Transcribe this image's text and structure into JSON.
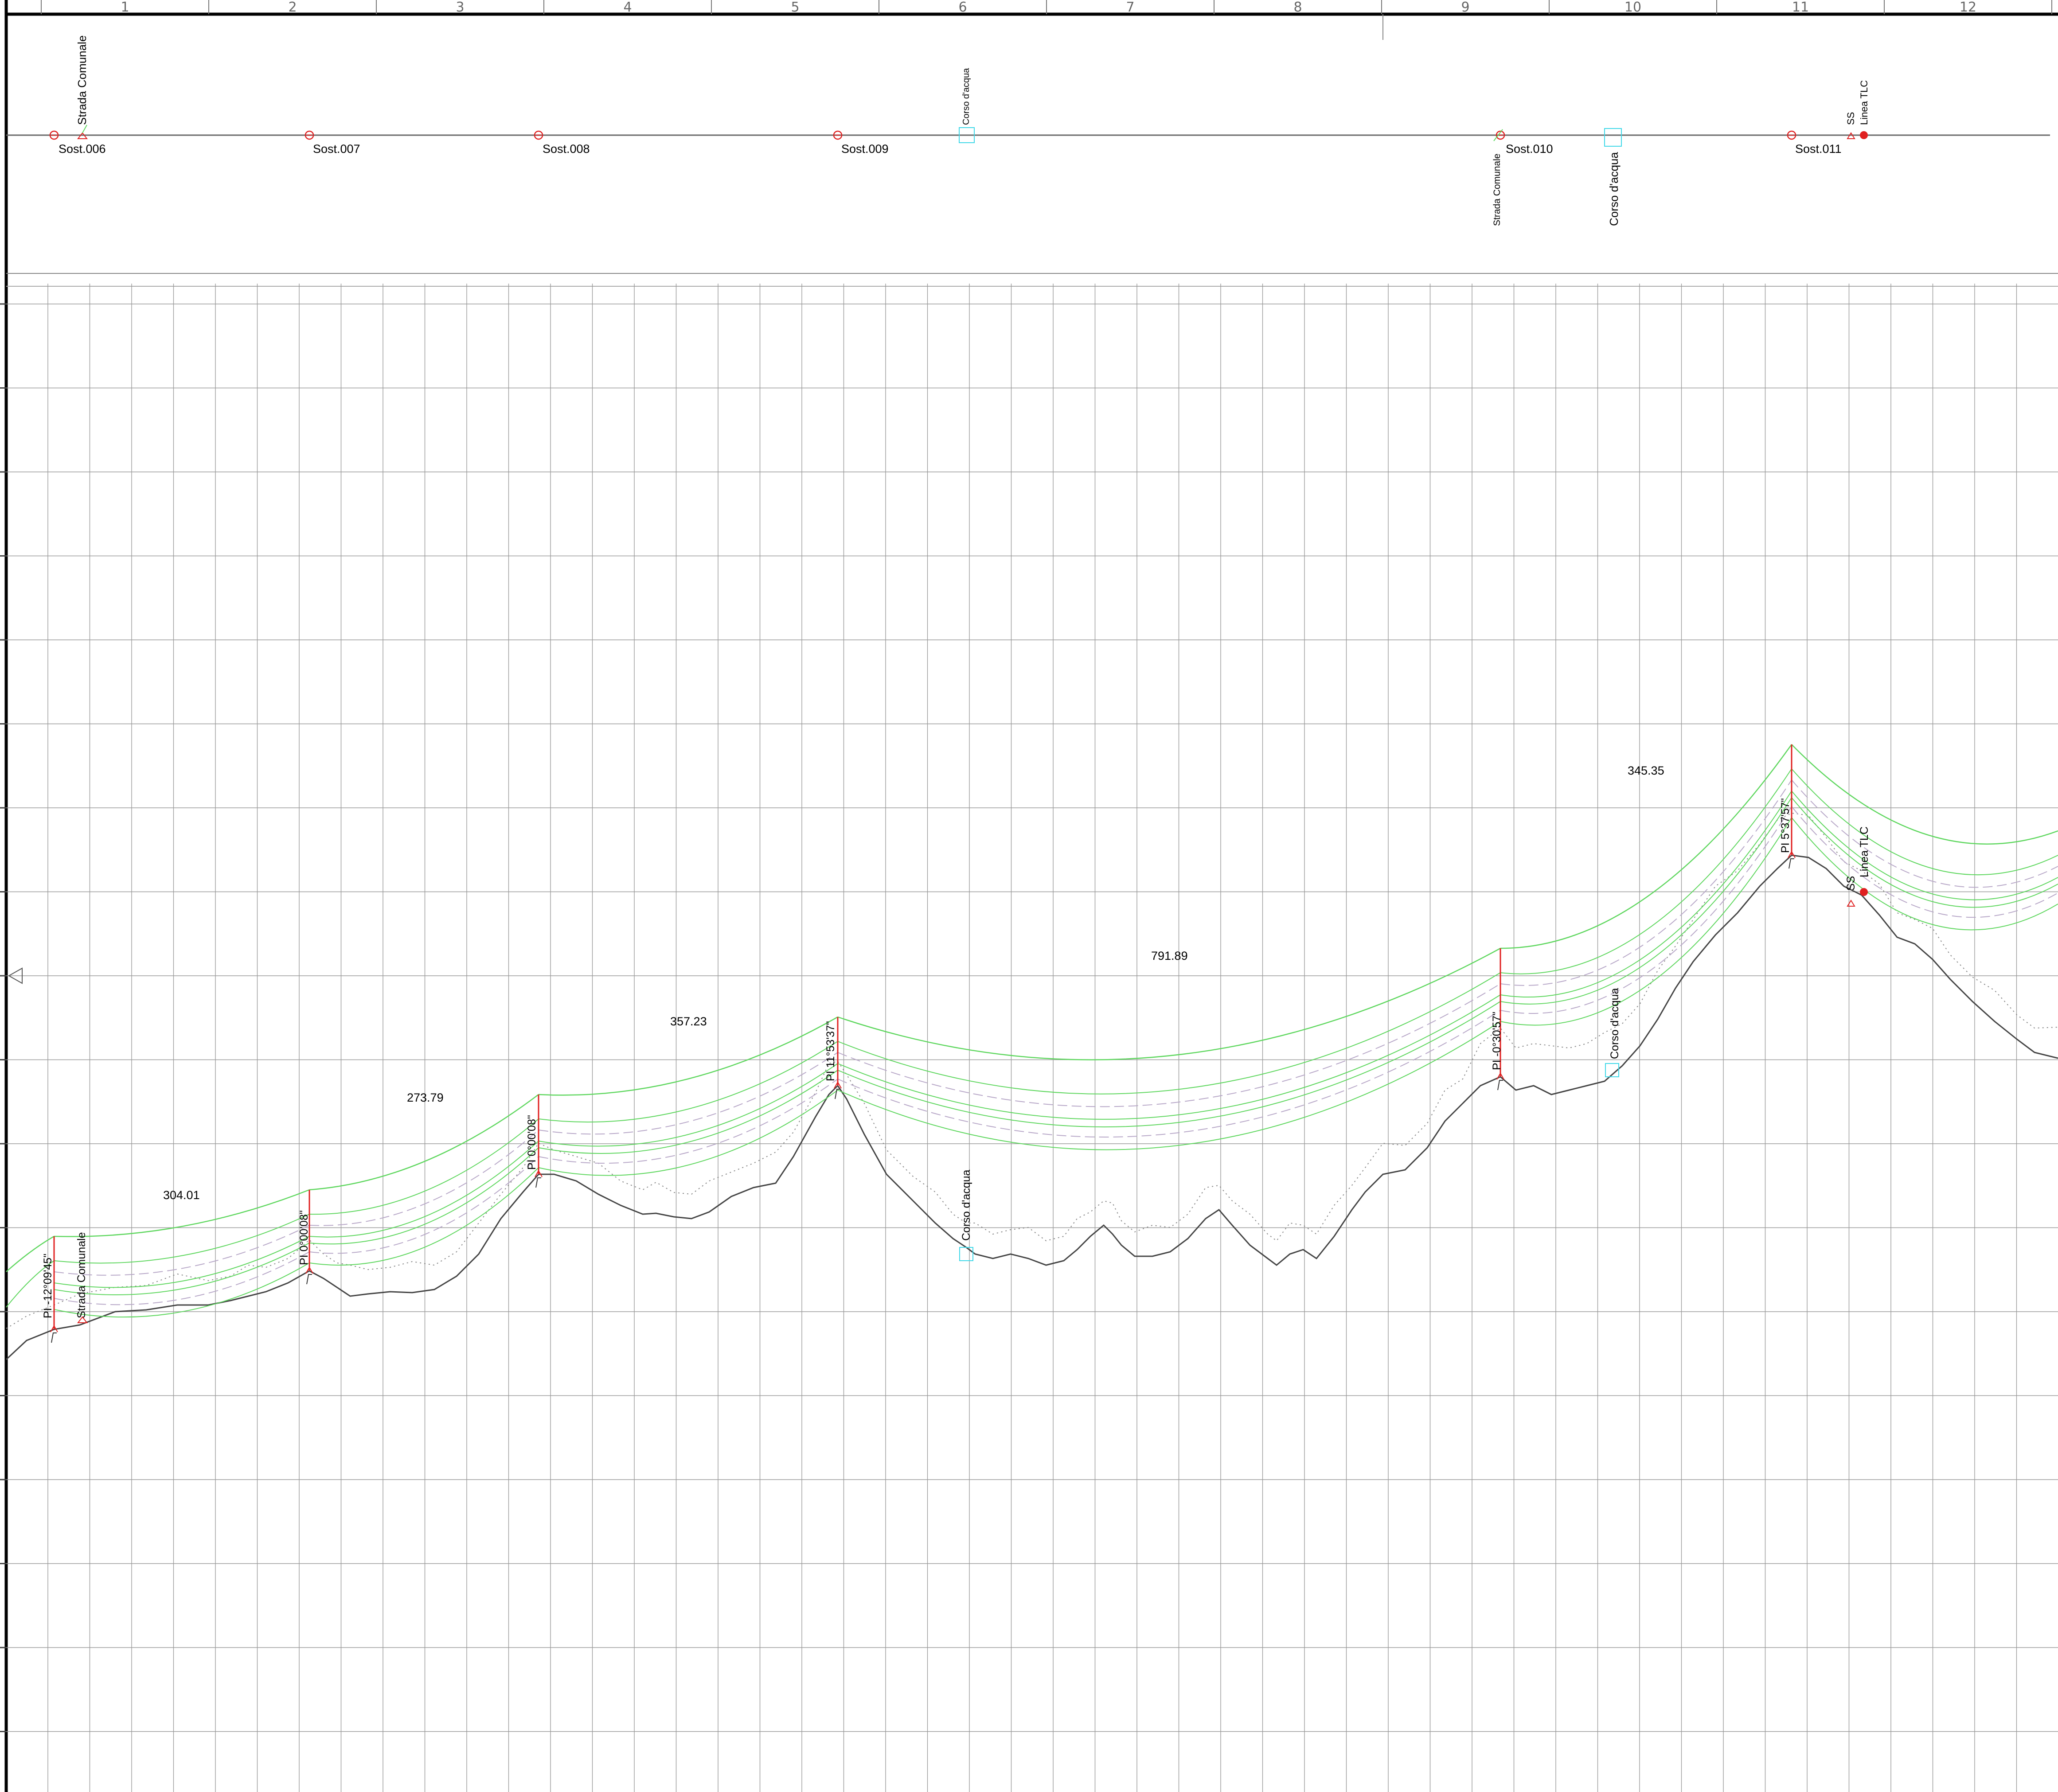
{
  "ruler": {
    "numbers": [
      "1",
      "2",
      "3",
      "4",
      "5",
      "6",
      "7",
      "8",
      "9",
      "10",
      "11",
      "12"
    ]
  },
  "plan": {
    "supports": [
      "Sost.006",
      "Sost.007",
      "Sost.008",
      "Sost.009",
      "Sost.010",
      "Sost.011"
    ],
    "crossings": {
      "road_top": "Strada Comunale",
      "water_small": "Corso d'acqua",
      "road_bottom": "Strada Comunale",
      "water_bottom": "Corso d'acqua",
      "ss": "SS",
      "tlc": "Linea TLC"
    }
  },
  "profile": {
    "spans": [
      "304.01",
      "273.79",
      "357.23",
      "791.89",
      "345.35"
    ],
    "pi_labels": [
      "PI -12°09'45\"",
      "PI 0°00'08\"",
      "PI 0°00'08\"",
      "PI 11°53'37\"",
      "PI -0°30'57\"",
      "PI 5°37'57\""
    ],
    "crossings": {
      "road": "Strada Comunale",
      "water1": "Corso d'acqua",
      "water2": "Corso d'acqua",
      "ss": "SS",
      "tlc": "Linea TLC"
    }
  },
  "colors": {
    "conductor": "#5fd75f",
    "clearance": "#b8a8c8",
    "support": "#e02020",
    "ground": "#444444",
    "water": "#40d8e8",
    "grid": "#9a9a9a"
  }
}
